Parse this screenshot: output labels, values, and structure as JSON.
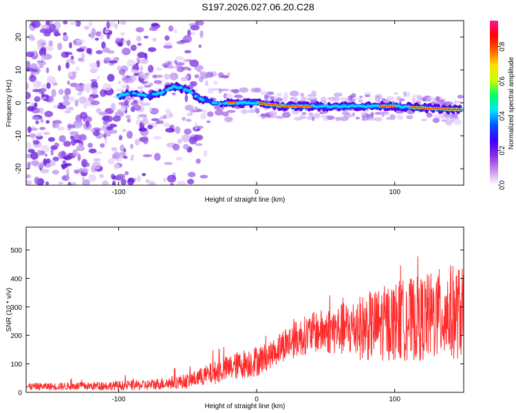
{
  "title": "S197.2026.027.06.20.C28",
  "chart_data": [
    {
      "type": "heatmap",
      "xlabel": "Height of straight line (km)",
      "ylabel": "Frequency (Hz)",
      "xlim": [
        -167,
        150
      ],
      "ylim": [
        -25,
        25
      ],
      "xticks": [
        -100,
        0,
        100
      ],
      "yticks": [
        -20,
        -10,
        0,
        10,
        20
      ],
      "colorbar": {
        "label": "Normalized spectral amplitude",
        "range": [
          0,
          0.95
        ],
        "ticks": [
          0.0,
          0.2,
          0.4,
          0.6,
          0.8
        ],
        "stops": [
          "#ffffff",
          "#c88cf0",
          "#8a2be2",
          "#3a00ff",
          "#0050ff",
          "#00e5ff",
          "#00ff66",
          "#c8ff00",
          "#ffe000",
          "#ff6000",
          "#ff0000",
          "#ff1493"
        ]
      },
      "description_ridge": {
        "centerline": [
          [
            -100,
            2
          ],
          [
            -90,
            3
          ],
          [
            -80,
            2
          ],
          [
            -70,
            3
          ],
          [
            -60,
            5
          ],
          [
            -50,
            4
          ],
          [
            -40,
            1
          ],
          [
            -30,
            0
          ],
          [
            -20,
            0
          ],
          [
            -10,
            0
          ],
          [
            0,
            0
          ],
          [
            20,
            -1
          ],
          [
            40,
            -1
          ],
          [
            60,
            -1
          ],
          [
            80,
            -1
          ],
          [
            100,
            -1
          ],
          [
            120,
            -1.5
          ],
          [
            140,
            -2
          ],
          [
            148,
            -2
          ]
        ]
      }
    },
    {
      "type": "line",
      "xlabel": "Height of straight line (km)",
      "ylabel": "SNR (10 * v/v)",
      "xlim": [
        -167,
        150
      ],
      "ylim": [
        0,
        580
      ],
      "xticks": [
        -100,
        0,
        100
      ],
      "yticks": [
        0,
        100,
        200,
        300,
        400,
        500
      ],
      "color": "#ff2a2a",
      "envelope": {
        "x": [
          -167,
          -120,
          -80,
          -50,
          -30,
          -10,
          0,
          10,
          20,
          40,
          60,
          80,
          100,
          120,
          140,
          150
        ],
        "mean": [
          20,
          22,
          25,
          40,
          70,
          100,
          110,
          130,
          170,
          210,
          220,
          230,
          250,
          260,
          280,
          280
        ],
        "amplitude": [
          12,
          14,
          18,
          25,
          40,
          50,
          55,
          45,
          60,
          70,
          90,
          120,
          140,
          150,
          170,
          160
        ]
      }
    }
  ]
}
